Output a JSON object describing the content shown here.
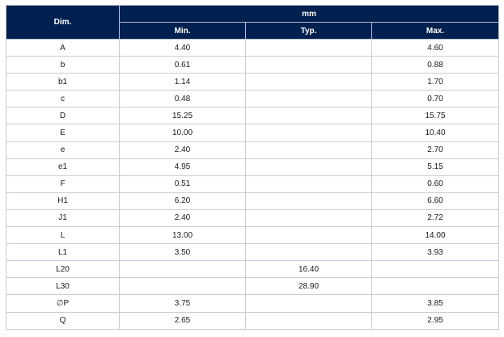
{
  "header": {
    "dim": "Dim.",
    "unit": "mm",
    "min": "Min.",
    "typ": "Typ.",
    "max": "Max."
  },
  "header_color": "#00204f",
  "rows": [
    {
      "dim": "A",
      "min": "4.40",
      "typ": "",
      "max": "4.60"
    },
    {
      "dim": "b",
      "min": "0.61",
      "typ": "",
      "max": "0.88"
    },
    {
      "dim": "b1",
      "min": "1.14",
      "typ": "",
      "max": "1.70"
    },
    {
      "dim": "c",
      "min": "0.48",
      "typ": "",
      "max": "0.70"
    },
    {
      "dim": "D",
      "min": "15.25",
      "typ": "",
      "max": "15.75"
    },
    {
      "dim": "E",
      "min": "10.00",
      "typ": "",
      "max": "10.40"
    },
    {
      "dim": "e",
      "min": "2.40",
      "typ": "",
      "max": "2.70"
    },
    {
      "dim": "e1",
      "min": "4.95",
      "typ": "",
      "max": "5.15"
    },
    {
      "dim": "F",
      "min": "0.51",
      "typ": "",
      "max": "0.60"
    },
    {
      "dim": "H1",
      "min": "6.20",
      "typ": "",
      "max": "6.60"
    },
    {
      "dim": "J1",
      "min": "2.40",
      "typ": "",
      "max": "2.72"
    },
    {
      "dim": "L",
      "min": "13.00",
      "typ": "",
      "max": "14.00"
    },
    {
      "dim": "L1",
      "min": "3.50",
      "typ": "",
      "max": "3.93"
    },
    {
      "dim": "L20",
      "min": "",
      "typ": "16.40",
      "max": ""
    },
    {
      "dim": "L30",
      "min": "",
      "typ": "28.90",
      "max": ""
    },
    {
      "dim": "∅P",
      "min": "3.75",
      "typ": "",
      "max": "3.85"
    },
    {
      "dim": "Q",
      "min": "2.65",
      "typ": "",
      "max": "2.95"
    }
  ]
}
